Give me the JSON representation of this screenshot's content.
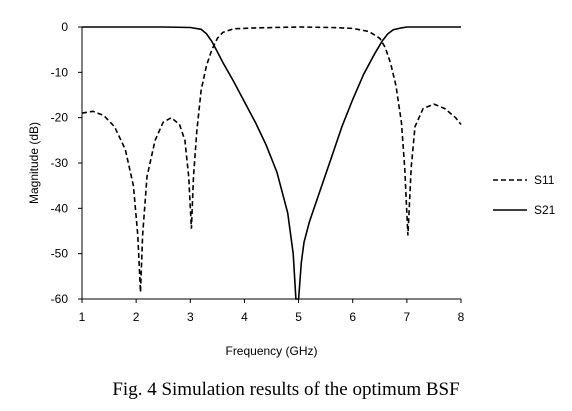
{
  "chart_data": {
    "type": "line",
    "title": "",
    "xlabel": "Frequency (GHz)",
    "ylabel": "Magnitude (dB)",
    "xlim": [
      1,
      8
    ],
    "ylim": [
      -60,
      0
    ],
    "xticks": [
      1,
      2,
      3,
      4,
      5,
      6,
      7,
      8
    ],
    "yticks": [
      0,
      -10,
      -20,
      -30,
      -40,
      -50,
      -60
    ],
    "grid": false,
    "legend_position": "right",
    "series": [
      {
        "name": "S11",
        "style": "dashed",
        "color": "#000000",
        "points": [
          [
            1.0,
            -19
          ],
          [
            1.2,
            -18.6
          ],
          [
            1.4,
            -19.5
          ],
          [
            1.6,
            -22
          ],
          [
            1.8,
            -27
          ],
          [
            1.95,
            -35
          ],
          [
            2.03,
            -46
          ],
          [
            2.08,
            -58.5
          ],
          [
            2.12,
            -46
          ],
          [
            2.2,
            -33
          ],
          [
            2.35,
            -25
          ],
          [
            2.5,
            -21
          ],
          [
            2.65,
            -20
          ],
          [
            2.8,
            -21.5
          ],
          [
            2.9,
            -25
          ],
          [
            2.97,
            -33
          ],
          [
            3.02,
            -44.5
          ],
          [
            3.06,
            -33
          ],
          [
            3.12,
            -23
          ],
          [
            3.2,
            -14
          ],
          [
            3.3,
            -8.5
          ],
          [
            3.4,
            -5
          ],
          [
            3.5,
            -2.5
          ],
          [
            3.6,
            -1.2
          ],
          [
            3.8,
            -0.4
          ],
          [
            4.2,
            -0.2
          ],
          [
            5.0,
            0
          ],
          [
            5.6,
            -0.1
          ],
          [
            6.0,
            -0.3
          ],
          [
            6.3,
            -1
          ],
          [
            6.5,
            -2.5
          ],
          [
            6.6,
            -4.5
          ],
          [
            6.7,
            -8
          ],
          [
            6.8,
            -13
          ],
          [
            6.9,
            -21
          ],
          [
            6.96,
            -31
          ],
          [
            7.02,
            -46
          ],
          [
            7.08,
            -31
          ],
          [
            7.15,
            -22
          ],
          [
            7.3,
            -18
          ],
          [
            7.5,
            -17
          ],
          [
            7.7,
            -18
          ],
          [
            7.9,
            -20
          ],
          [
            8.0,
            -21.5
          ]
        ]
      },
      {
        "name": "S21",
        "style": "solid",
        "color": "#000000",
        "points": [
          [
            1.0,
            0
          ],
          [
            2.5,
            0
          ],
          [
            3.0,
            -0.1
          ],
          [
            3.2,
            -0.5
          ],
          [
            3.3,
            -1.5
          ],
          [
            3.4,
            -3.2
          ],
          [
            3.5,
            -5.5
          ],
          [
            3.6,
            -7.8
          ],
          [
            3.8,
            -12
          ],
          [
            4.0,
            -16.5
          ],
          [
            4.2,
            -21
          ],
          [
            4.4,
            -26
          ],
          [
            4.6,
            -32
          ],
          [
            4.8,
            -41
          ],
          [
            4.9,
            -50
          ],
          [
            4.95,
            -60
          ],
          [
            5.0,
            -60
          ],
          [
            5.05,
            -52
          ],
          [
            5.1,
            -47.5
          ],
          [
            5.2,
            -43
          ],
          [
            5.4,
            -36
          ],
          [
            5.6,
            -29
          ],
          [
            5.8,
            -22
          ],
          [
            6.0,
            -16
          ],
          [
            6.2,
            -10.5
          ],
          [
            6.4,
            -6
          ],
          [
            6.55,
            -3
          ],
          [
            6.65,
            -1.5
          ],
          [
            6.75,
            -0.6
          ],
          [
            6.9,
            -0.2
          ],
          [
            7.0,
            0
          ],
          [
            8.0,
            0
          ]
        ]
      }
    ]
  },
  "caption": "Fig. 4 Simulation results of the optimum BSF"
}
